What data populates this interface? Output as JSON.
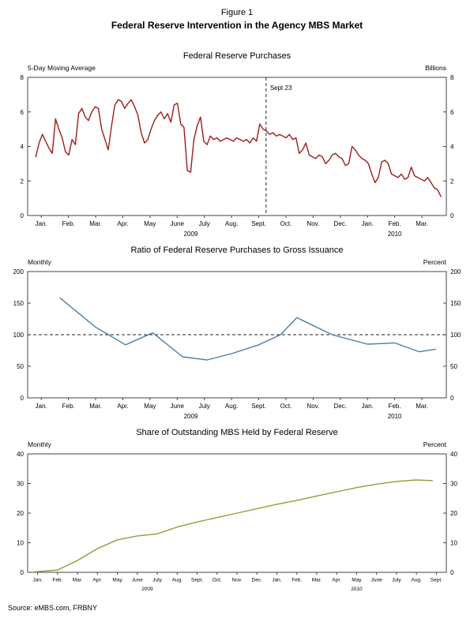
{
  "figure": {
    "label": "Figure 1",
    "title": "Federal Reserve Intervention in the Agency MBS Market"
  },
  "source": "Source: eMBS.com, FRBNY",
  "chart_data": [
    {
      "type": "line",
      "title": "Federal Reserve Purchases",
      "left_label": "5-Day Moving Average",
      "right_label": "Billions",
      "color": "#9e1d1d",
      "ylim": [
        0,
        8
      ],
      "yticks": [
        0,
        2,
        4,
        6,
        8
      ],
      "xlim": [
        0,
        15.4
      ],
      "tick_font": 8,
      "xticks": [
        {
          "pos": 0.5,
          "label": "Jan."
        },
        {
          "pos": 1.5,
          "label": "Feb."
        },
        {
          "pos": 2.5,
          "label": "Mar."
        },
        {
          "pos": 3.5,
          "label": "Apr."
        },
        {
          "pos": 4.5,
          "label": "May"
        },
        {
          "pos": 5.5,
          "label": "June"
        },
        {
          "pos": 6.5,
          "label": "July"
        },
        {
          "pos": 7.5,
          "label": "Aug."
        },
        {
          "pos": 8.5,
          "label": "Sept."
        },
        {
          "pos": 9.5,
          "label": "Oct."
        },
        {
          "pos": 10.5,
          "label": "Nov."
        },
        {
          "pos": 11.5,
          "label": "Dec."
        },
        {
          "pos": 12.5,
          "label": "Jan."
        },
        {
          "pos": 13.5,
          "label": "Feb."
        },
        {
          "pos": 14.5,
          "label": "Mar."
        }
      ],
      "year_labels": [
        {
          "pos": 6.0,
          "label": "2009"
        },
        {
          "pos": 13.5,
          "label": "2010"
        }
      ],
      "vline": {
        "pos": 8.77,
        "label": "Sept 23"
      },
      "x_start": 0.3,
      "x_end": 15.2,
      "values": [
        3.4,
        4.2,
        4.7,
        4.3,
        3.9,
        3.6,
        5.6,
        5.0,
        4.5,
        3.7,
        3.5,
        4.4,
        4.1,
        5.9,
        6.2,
        5.7,
        5.5,
        6.0,
        6.3,
        6.2,
        5.0,
        4.4,
        3.8,
        5.2,
        6.4,
        6.7,
        6.6,
        6.2,
        6.5,
        6.7,
        6.3,
        5.8,
        4.8,
        4.2,
        4.4,
        5.0,
        5.5,
        5.8,
        6.0,
        5.6,
        5.9,
        5.4,
        6.4,
        6.5,
        5.3,
        5.1,
        2.6,
        2.5,
        4.4,
        5.2,
        5.7,
        4.3,
        4.1,
        4.6,
        4.4,
        4.5,
        4.3,
        4.4,
        4.5,
        4.4,
        4.3,
        4.5,
        4.4,
        4.3,
        4.4,
        4.2,
        4.5,
        4.3,
        5.3,
        5.0,
        4.9,
        4.7,
        4.8,
        4.6,
        4.7,
        4.6,
        4.5,
        4.7,
        4.4,
        4.5,
        3.6,
        3.8,
        4.2,
        3.5,
        3.4,
        3.3,
        3.5,
        3.4,
        3.0,
        3.2,
        3.5,
        3.6,
        3.4,
        3.3,
        2.9,
        3.0,
        4.0,
        3.8,
        3.5,
        3.3,
        3.2,
        3.0,
        2.4,
        1.9,
        2.2,
        3.1,
        3.2,
        3.0,
        2.4,
        2.3,
        2.2,
        2.4,
        2.1,
        2.2,
        2.8,
        2.3,
        2.2,
        2.1,
        2.0,
        2.2,
        1.9,
        1.6,
        1.5,
        1.1
      ]
    },
    {
      "type": "line",
      "title": "Ratio of Federal Reserve Purchases to Gross Issuance",
      "left_label": "Monthly",
      "right_label": "Percent",
      "color": "#4e7ba6",
      "ylim": [
        0,
        200
      ],
      "yticks": [
        0,
        50,
        100,
        150,
        200
      ],
      "xlim": [
        0,
        15.4
      ],
      "tick_font": 8,
      "xticks": [
        {
          "pos": 0.5,
          "label": "Jan."
        },
        {
          "pos": 1.5,
          "label": "Feb."
        },
        {
          "pos": 2.5,
          "label": "Mar."
        },
        {
          "pos": 3.5,
          "label": "Apr."
        },
        {
          "pos": 4.5,
          "label": "May"
        },
        {
          "pos": 5.5,
          "label": "June"
        },
        {
          "pos": 6.5,
          "label": "July"
        },
        {
          "pos": 7.5,
          "label": "Aug."
        },
        {
          "pos": 8.5,
          "label": "Sept."
        },
        {
          "pos": 9.5,
          "label": "Oct."
        },
        {
          "pos": 10.5,
          "label": "Nov."
        },
        {
          "pos": 11.5,
          "label": "Dec."
        },
        {
          "pos": 12.5,
          "label": "Jan."
        },
        {
          "pos": 13.5,
          "label": "Feb."
        },
        {
          "pos": 14.5,
          "label": "Mar."
        }
      ],
      "year_labels": [
        {
          "pos": 6.0,
          "label": "2009"
        },
        {
          "pos": 13.5,
          "label": "2010"
        }
      ],
      "hline": {
        "pos": 100
      },
      "x": [
        1.2,
        2.5,
        3.6,
        4.6,
        5.7,
        6.6,
        7.5,
        8.5,
        9.3,
        9.9,
        11.2,
        12.5,
        13.5,
        14.4,
        15.0
      ],
      "values": [
        158,
        112,
        84,
        103,
        65,
        60,
        70,
        84,
        100,
        127,
        100,
        85,
        87,
        73,
        77
      ]
    },
    {
      "type": "line",
      "title": "Share of Outstanding MBS Held by Federal Reserve",
      "left_label": "Monthly",
      "right_label": "Percent",
      "color": "#86a33c",
      "ylim": [
        0,
        40
      ],
      "yticks": [
        0,
        10,
        20,
        30,
        40
      ],
      "xlim": [
        0,
        21
      ],
      "tick_font": 6.5,
      "xticks": [
        {
          "pos": 0.5,
          "label": "Jan."
        },
        {
          "pos": 1.5,
          "label": "Feb."
        },
        {
          "pos": 2.5,
          "label": "Mar."
        },
        {
          "pos": 3.5,
          "label": "Apr."
        },
        {
          "pos": 4.5,
          "label": "May"
        },
        {
          "pos": 5.5,
          "label": "June"
        },
        {
          "pos": 6.5,
          "label": "July"
        },
        {
          "pos": 7.5,
          "label": "Aug."
        },
        {
          "pos": 8.5,
          "label": "Sept."
        },
        {
          "pos": 9.5,
          "label": "Oct."
        },
        {
          "pos": 10.5,
          "label": "Nov."
        },
        {
          "pos": 11.5,
          "label": "Dec."
        },
        {
          "pos": 12.5,
          "label": "Jan."
        },
        {
          "pos": 13.5,
          "label": "Feb."
        },
        {
          "pos": 14.5,
          "label": "Mar."
        },
        {
          "pos": 15.5,
          "label": "Apr."
        },
        {
          "pos": 16.5,
          "label": "May"
        },
        {
          "pos": 17.5,
          "label": "June"
        },
        {
          "pos": 18.5,
          "label": "July"
        },
        {
          "pos": 19.5,
          "label": "Aug."
        },
        {
          "pos": 20.5,
          "label": "Sept."
        }
      ],
      "year_labels": [
        {
          "pos": 6.0,
          "label": "2009"
        },
        {
          "pos": 16.5,
          "label": "2010"
        }
      ],
      "x": [
        0.3,
        1.5,
        2.5,
        3.5,
        4.5,
        5.5,
        6.5,
        7.5,
        8.5,
        9.5,
        10.5,
        11.5,
        12.5,
        13.5,
        14.5,
        15.5,
        16.5,
        17.5,
        18.5,
        19.5,
        20.3
      ],
      "values": [
        0.1,
        0.8,
        4,
        8,
        11,
        12.3,
        13,
        15.3,
        17,
        18.5,
        20,
        21.5,
        23,
        24.3,
        25.8,
        27.2,
        28.6,
        29.8,
        30.7,
        31.2,
        31
      ]
    }
  ]
}
